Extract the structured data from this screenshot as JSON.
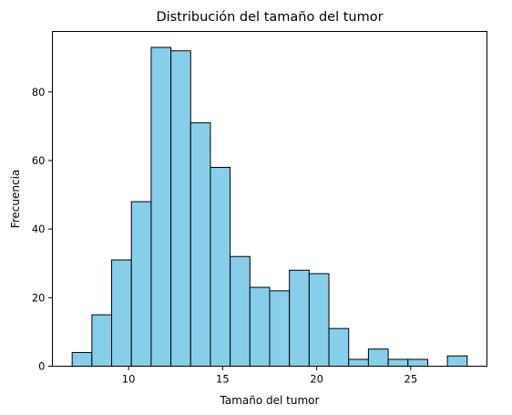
{
  "chart_data": {
    "type": "bar",
    "title": "Distribución del tamaño del tumor",
    "xlabel": "Tamaño del tumor",
    "ylabel": "Frecuencia",
    "bar_color": "#87CEEB",
    "edge_color": "#000000",
    "bins": [
      {
        "x0": 7.0,
        "x1": 8.05,
        "count": 4
      },
      {
        "x0": 8.05,
        "x1": 9.1,
        "count": 15
      },
      {
        "x0": 9.1,
        "x1": 10.15,
        "count": 31
      },
      {
        "x0": 10.15,
        "x1": 11.2,
        "count": 48
      },
      {
        "x0": 11.2,
        "x1": 12.25,
        "count": 93
      },
      {
        "x0": 12.25,
        "x1": 13.3,
        "count": 92
      },
      {
        "x0": 13.3,
        "x1": 14.35,
        "count": 71
      },
      {
        "x0": 14.35,
        "x1": 15.4,
        "count": 58
      },
      {
        "x0": 15.4,
        "x1": 16.45,
        "count": 32
      },
      {
        "x0": 16.45,
        "x1": 17.5,
        "count": 23
      },
      {
        "x0": 17.5,
        "x1": 18.55,
        "count": 22
      },
      {
        "x0": 18.55,
        "x1": 19.6,
        "count": 28
      },
      {
        "x0": 19.6,
        "x1": 20.65,
        "count": 27
      },
      {
        "x0": 20.65,
        "x1": 21.7,
        "count": 11
      },
      {
        "x0": 21.7,
        "x1": 22.75,
        "count": 2
      },
      {
        "x0": 22.75,
        "x1": 23.8,
        "count": 5
      },
      {
        "x0": 23.8,
        "x1": 24.85,
        "count": 2
      },
      {
        "x0": 24.85,
        "x1": 25.9,
        "count": 2
      },
      {
        "x0": 25.9,
        "x1": 26.95,
        "count": 0
      },
      {
        "x0": 26.95,
        "x1": 28.0,
        "count": 3
      }
    ],
    "xlim": [
      5.95,
      29.05
    ],
    "ylim": [
      0,
      97.65
    ],
    "xticks": [
      10,
      15,
      20,
      25
    ],
    "yticks": [
      0,
      20,
      40,
      60,
      80
    ],
    "grid": false
  }
}
